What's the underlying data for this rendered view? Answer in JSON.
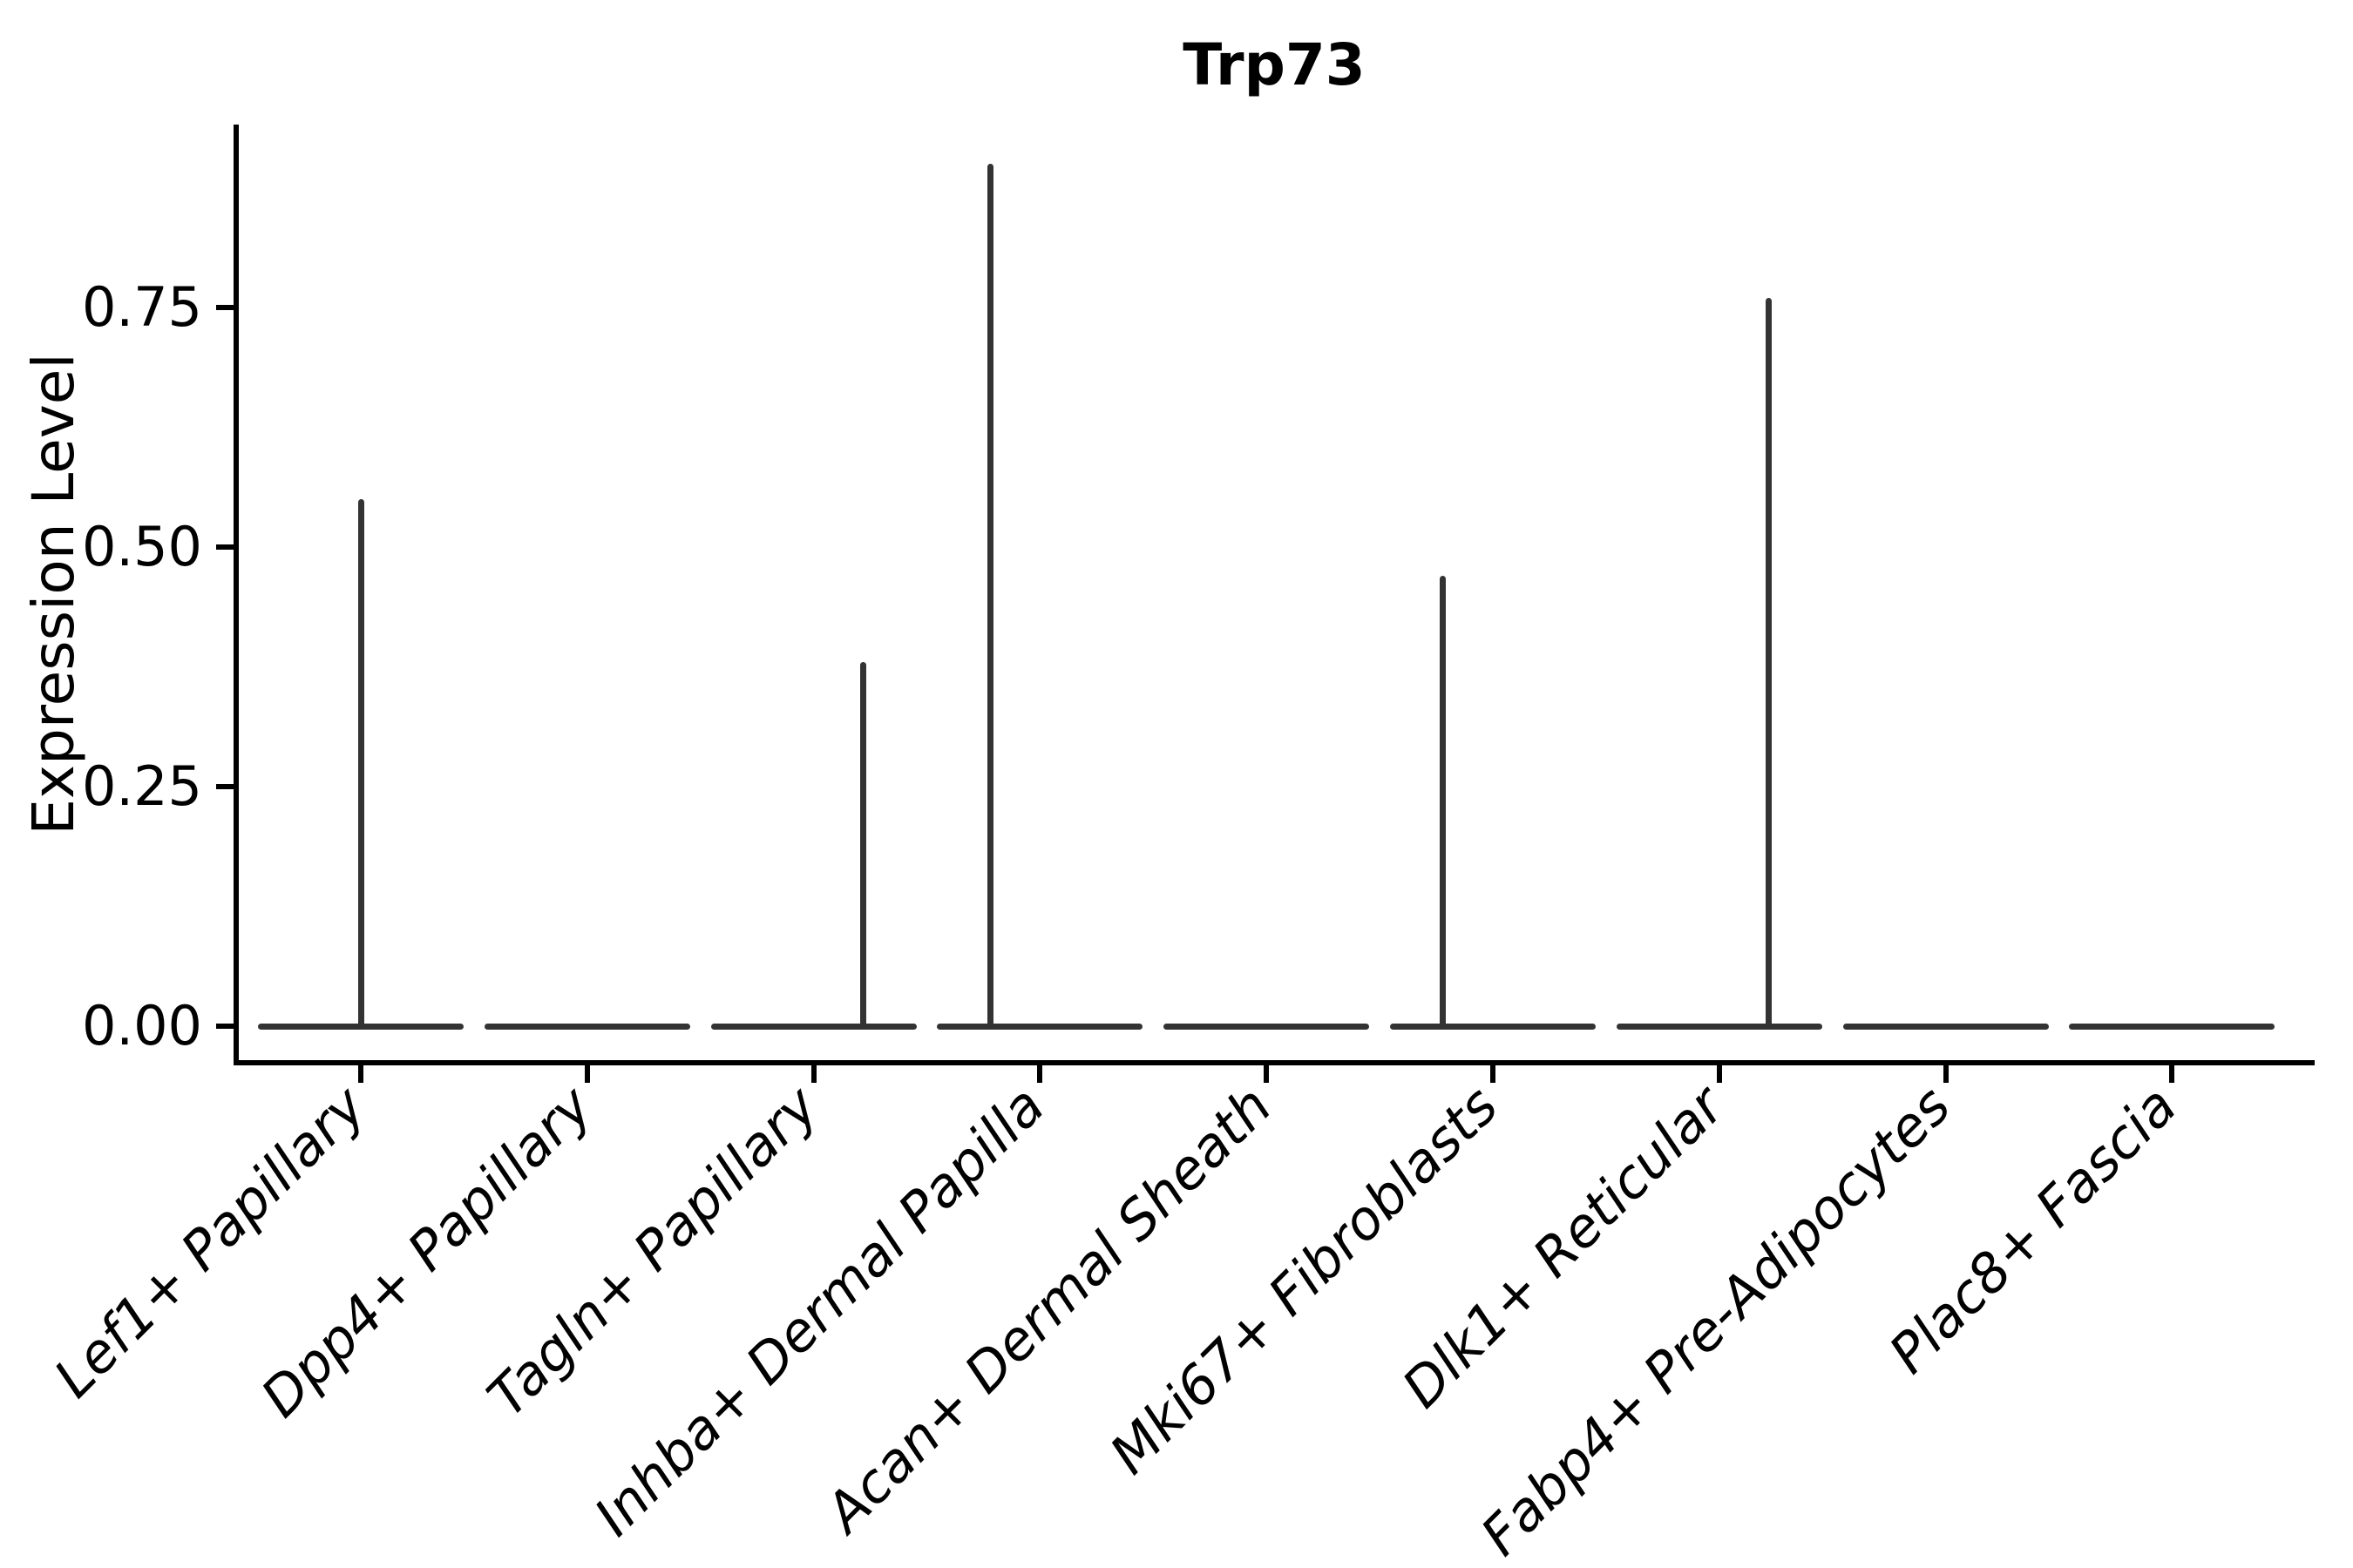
{
  "chart_data": {
    "type": "violin",
    "title": "Trp73",
    "xlabel": "",
    "ylabel": "Expression Level",
    "ytick_labels": [
      "0.00",
      "0.25",
      "0.50",
      "0.75"
    ],
    "ytick_values": [
      0.0,
      0.25,
      0.5,
      0.75
    ],
    "ylim": [
      -0.036,
      0.94
    ],
    "grid": false,
    "legend": "none",
    "categories": [
      "Lef1+ Papillary",
      "Dpp4+ Papillary",
      "Tagln+ Papillary",
      "Inhba+ Dermal Papilla",
      "Acan+ Dermal Sheath",
      "Mki67+ Fibroblasts",
      "Dlk1+ Reticular",
      "Fabp4+ Pre-Adipocytes",
      "Plac8+ Fascia"
    ],
    "violins": [
      {
        "category": "Lef1+ Papillary",
        "baseline_value": 0.0,
        "max_expression": 0.55,
        "spike_offset_frac": 0.0
      },
      {
        "category": "Dpp4+ Papillary",
        "baseline_value": 0.0,
        "max_expression": 0.0,
        "spike_offset_frac": 0.0
      },
      {
        "category": "Tagln+ Papillary",
        "baseline_value": 0.0,
        "max_expression": 0.38,
        "spike_offset_frac": 0.22
      },
      {
        "category": "Inhba+ Dermal Papilla",
        "baseline_value": 0.0,
        "max_expression": 0.9,
        "spike_offset_frac": -0.22
      },
      {
        "category": "Acan+ Dermal Sheath",
        "baseline_value": 0.0,
        "max_expression": 0.0,
        "spike_offset_frac": 0.0
      },
      {
        "category": "Mki67+ Fibroblasts",
        "baseline_value": 0.0,
        "max_expression": 0.47,
        "spike_offset_frac": -0.22
      },
      {
        "category": "Dlk1+ Reticular",
        "baseline_value": 0.0,
        "max_expression": 0.76,
        "spike_offset_frac": 0.22
      },
      {
        "category": "Fabp4+ Pre-Adipocytes",
        "baseline_value": 0.0,
        "max_expression": 0.0,
        "spike_offset_frac": 0.0
      },
      {
        "category": "Plac8+ Fascia",
        "baseline_value": 0.0,
        "max_expression": 0.0,
        "spike_offset_frac": 0.0
      }
    ],
    "colors": {
      "violin_stroke": "#333333",
      "axis": "#000000",
      "text": "#000000",
      "background": "#ffffff"
    }
  }
}
